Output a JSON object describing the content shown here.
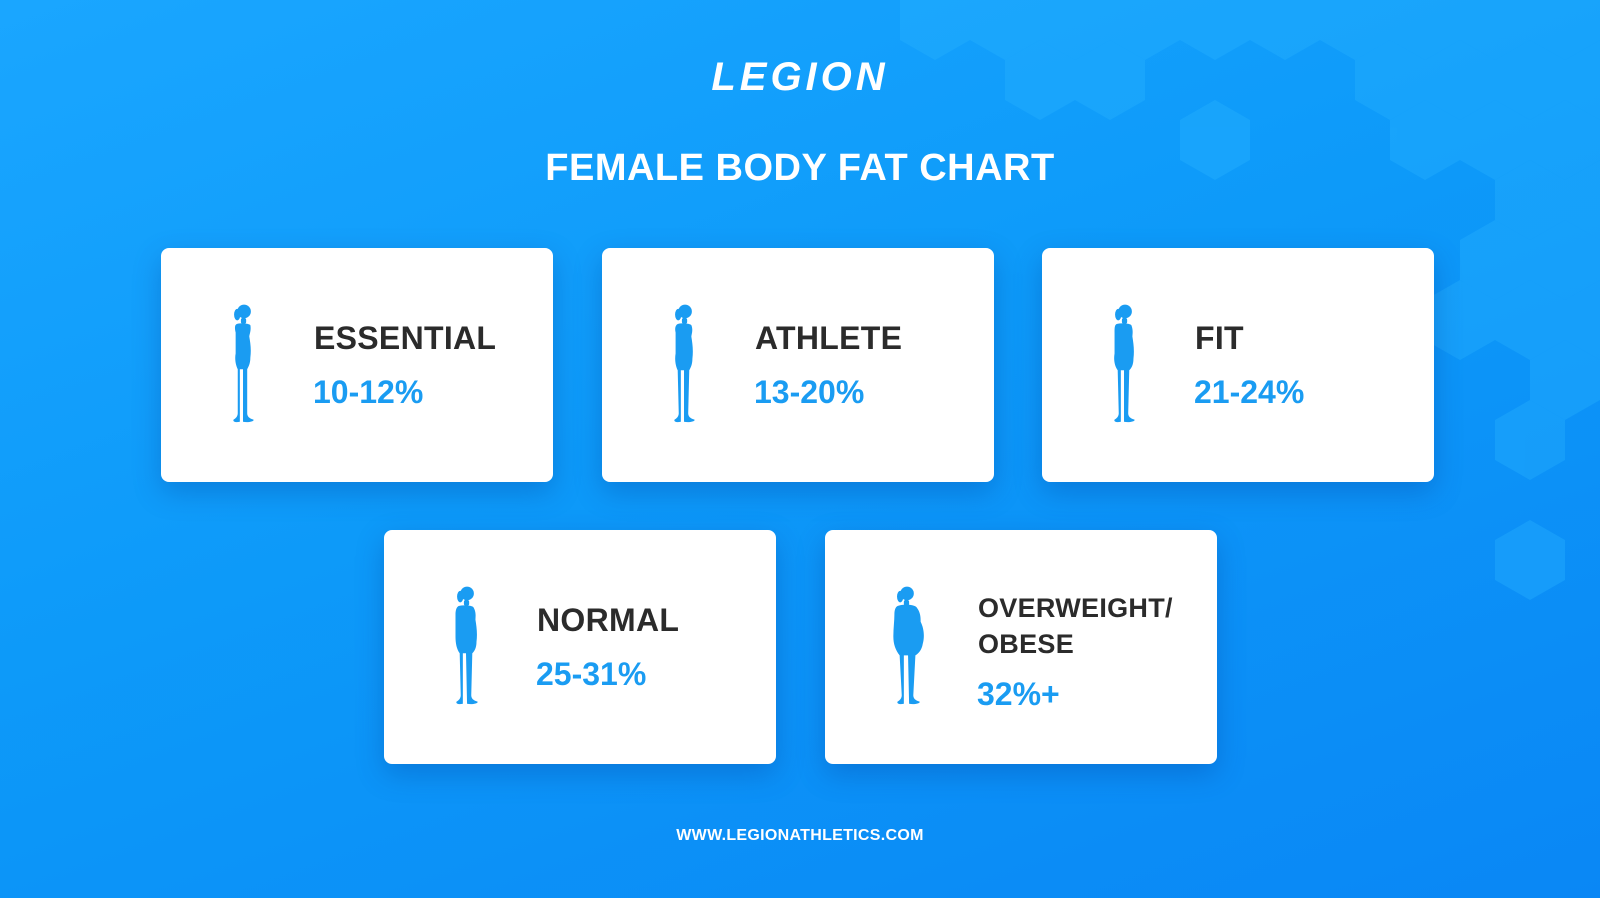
{
  "brand": {
    "logo_text": "LEGION"
  },
  "header": {
    "title": "FEMALE BODY FAT CHART"
  },
  "colors": {
    "background": "#0d9af9",
    "card": "#ffffff",
    "label": "#2b2b2b",
    "accent": "#1a9cf2",
    "hexagon": "#2ab4ff"
  },
  "cards": [
    {
      "label": "ESSENTIAL",
      "range": "10-12%",
      "icon": "female-silhouette-icon"
    },
    {
      "label": "ATHLETE",
      "range": "13-20%",
      "icon": "female-silhouette-icon"
    },
    {
      "label": "FIT",
      "range": "21-24%",
      "icon": "female-silhouette-icon"
    },
    {
      "label": "NORMAL",
      "range": "25-31%",
      "icon": "female-silhouette-icon"
    },
    {
      "label_line1": "OVERWEIGHT/",
      "label_line2": "OBESE",
      "range": "32%+",
      "icon": "female-silhouette-icon"
    }
  ],
  "footer": {
    "url": "WWW.LEGIONATHLETICS.COM"
  }
}
